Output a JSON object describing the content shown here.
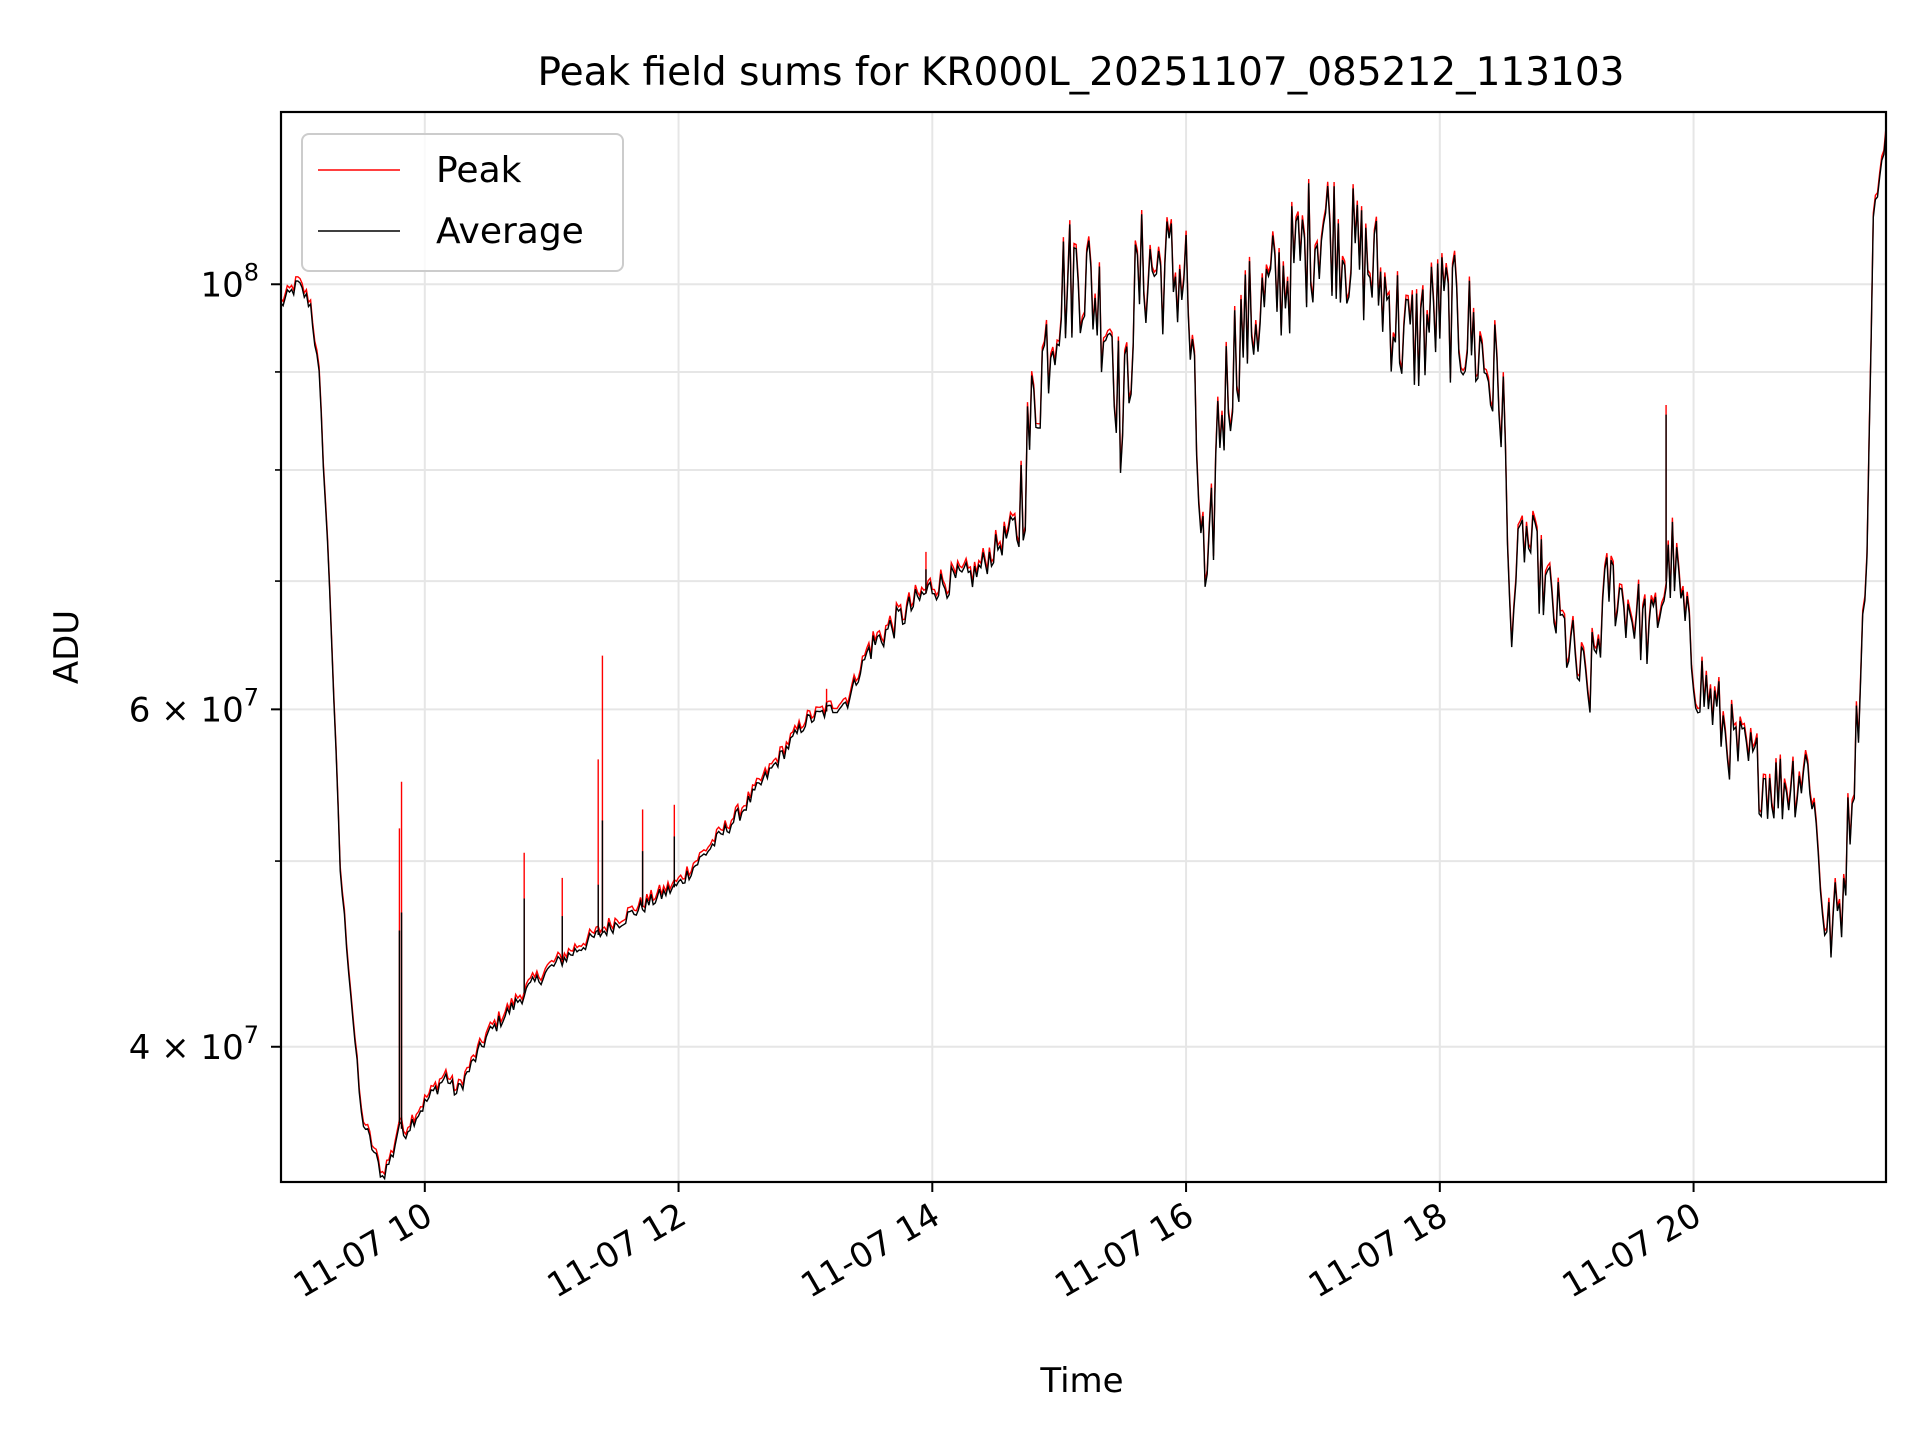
{
  "chart_data": {
    "type": "line",
    "title": "Peak field sums for KR000L_20251107_085212_113103",
    "xlabel": "Time",
    "ylabel": "ADU",
    "yscale": "log",
    "xlim": [
      "2025-11-07 08:52",
      "2025-11-07 21:31"
    ],
    "ylim": [
      34000000,
      123000000
    ],
    "x_tick_labels": [
      "11-07 10",
      "11-07 12",
      "11-07 14",
      "11-07 16",
      "11-07 18",
      "11-07 20"
    ],
    "x_ticks": [
      "2025-11-07 10:00",
      "2025-11-07 12:00",
      "2025-11-07 14:00",
      "2025-11-07 16:00",
      "2025-11-07 18:00",
      "2025-11-07 20:00"
    ],
    "y_tick_labels": [
      {
        "value": 100000000,
        "base": "10",
        "exp": "8"
      },
      {
        "value": 60000000,
        "base": "6 × 10",
        "exp": "7"
      },
      {
        "value": 40000000,
        "base": "4 × 10",
        "exp": "7"
      }
    ],
    "y_minor_ticks": [
      50000000,
      70000000,
      80000000,
      90000000
    ],
    "grid": true,
    "legend_position": "top-left",
    "series": [
      {
        "name": "Peak",
        "color": "#ff0000",
        "x": [
          "2025-11-07 08:52",
          "2025-11-07 09:00",
          "2025-11-07 09:06",
          "2025-11-07 09:10",
          "2025-11-07 09:15",
          "2025-11-07 09:20",
          "2025-11-07 09:30",
          "2025-11-07 09:40",
          "2025-11-07 09:45",
          "2025-11-07 09:48",
          "2025-11-07 09:50",
          "2025-11-07 09:55",
          "2025-11-07 10:05",
          "2025-11-07 10:10",
          "2025-11-07 10:15",
          "2025-11-07 10:30",
          "2025-11-07 10:50",
          "2025-11-07 11:00",
          "2025-11-07 11:20",
          "2025-11-07 11:40",
          "2025-11-07 12:00",
          "2025-11-07 12:30",
          "2025-11-07 13:00",
          "2025-11-07 13:20",
          "2025-11-07 13:30",
          "2025-11-07 14:00",
          "2025-11-07 14:20",
          "2025-11-07 14:40",
          "2025-11-07 14:50",
          "2025-11-07 15:00",
          "2025-11-07 15:10",
          "2025-11-07 15:25",
          "2025-11-07 15:30",
          "2025-11-07 15:35",
          "2025-11-07 15:40",
          "2025-11-07 16:00",
          "2025-11-07 16:10",
          "2025-11-07 16:15",
          "2025-11-07 16:25",
          "2025-11-07 16:35",
          "2025-11-07 16:50",
          "2025-11-07 17:05",
          "2025-11-07 17:15",
          "2025-11-07 17:30",
          "2025-11-07 17:45",
          "2025-11-07 18:00",
          "2025-11-07 18:15",
          "2025-11-07 18:30",
          "2025-11-07 18:33",
          "2025-11-07 18:40",
          "2025-11-07 19:00",
          "2025-11-07 19:10",
          "2025-11-07 19:20",
          "2025-11-07 19:40",
          "2025-11-07 19:50",
          "2025-11-07 20:00",
          "2025-11-07 20:20",
          "2025-11-07 20:40",
          "2025-11-07 20:55",
          "2025-11-07 21:03",
          "2025-11-07 21:10",
          "2025-11-07 21:17",
          "2025-11-07 21:22",
          "2025-11-07 21:25",
          "2025-11-07 21:31"
        ],
        "y": [
          98000000,
          100500000,
          98000000,
          90000000,
          70000000,
          50000000,
          37000000,
          34500000,
          35500000,
          37000000,
          36500000,
          37000000,
          38500000,
          39000000,
          38300000,
          41000000,
          43500000,
          44500000,
          46000000,
          47500000,
          49000000,
          53500000,
          59500000,
          61000000,
          65000000,
          70000000,
          71000000,
          76000000,
          90000000,
          100000000,
          103000000,
          96000000,
          85000000,
          98000000,
          103000000,
          102000000,
          67000000,
          85000000,
          95000000,
          98000000,
          103000000,
          110000000,
          106000000,
          102000000,
          94000000,
          98000000,
          95000000,
          88000000,
          68000000,
          75000000,
          66000000,
          62000000,
          71000000,
          66000000,
          74000000,
          64000000,
          58000000,
          55000000,
          57000000,
          46000000,
          48000000,
          59000000,
          75000000,
          110000000,
          122000000
        ]
      },
      {
        "name": "Average",
        "color": "#000000",
        "x": [
          "2025-11-07 08:52",
          "2025-11-07 09:00",
          "2025-11-07 09:06",
          "2025-11-07 09:10",
          "2025-11-07 09:15",
          "2025-11-07 09:20",
          "2025-11-07 09:30",
          "2025-11-07 09:40",
          "2025-11-07 09:45",
          "2025-11-07 09:48",
          "2025-11-07 09:50",
          "2025-11-07 09:55",
          "2025-11-07 10:05",
          "2025-11-07 10:10",
          "2025-11-07 10:15",
          "2025-11-07 10:30",
          "2025-11-07 10:50",
          "2025-11-07 11:00",
          "2025-11-07 11:20",
          "2025-11-07 11:40",
          "2025-11-07 12:00",
          "2025-11-07 12:30",
          "2025-11-07 13:00",
          "2025-11-07 13:20",
          "2025-11-07 13:30",
          "2025-11-07 14:00",
          "2025-11-07 14:20",
          "2025-11-07 14:40",
          "2025-11-07 14:50",
          "2025-11-07 15:00",
          "2025-11-07 15:10",
          "2025-11-07 15:25",
          "2025-11-07 15:30",
          "2025-11-07 15:35",
          "2025-11-07 15:40",
          "2025-11-07 16:00",
          "2025-11-07 16:10",
          "2025-11-07 16:15",
          "2025-11-07 16:25",
          "2025-11-07 16:35",
          "2025-11-07 16:50",
          "2025-11-07 17:05",
          "2025-11-07 17:15",
          "2025-11-07 17:30",
          "2025-11-07 17:45",
          "2025-11-07 18:00",
          "2025-11-07 18:15",
          "2025-11-07 18:30",
          "2025-11-07 18:33",
          "2025-11-07 18:40",
          "2025-11-07 19:00",
          "2025-11-07 19:10",
          "2025-11-07 19:20",
          "2025-11-07 19:40",
          "2025-11-07 19:50",
          "2025-11-07 20:00",
          "2025-11-07 20:20",
          "2025-11-07 20:40",
          "2025-11-07 20:55",
          "2025-11-07 21:03",
          "2025-11-07 21:10",
          "2025-11-07 21:17",
          "2025-11-07 21:22",
          "2025-11-07 21:25",
          "2025-11-07 21:31"
        ],
        "y": [
          97500000,
          100000000,
          97500000,
          89500000,
          69500000,
          49500000,
          36800000,
          34200000,
          35200000,
          36500000,
          36000000,
          36700000,
          38000000,
          38600000,
          37800000,
          40600000,
          43000000,
          44000000,
          45600000,
          47100000,
          48600000,
          53100000,
          59100000,
          60600000,
          64500000,
          69500000,
          70500000,
          75000000,
          89000000,
          99000000,
          102000000,
          95000000,
          83000000,
          97000000,
          102000000,
          101000000,
          66000000,
          84000000,
          94000000,
          97000000,
          102000000,
          108000000,
          105000000,
          101000000,
          93000000,
          97000000,
          94000000,
          87000000,
          67000000,
          74000000,
          65000000,
          61000000,
          70000000,
          65500000,
          72000000,
          63000000,
          57000000,
          54500000,
          56000000,
          45500000,
          47500000,
          58000000,
          72000000,
          108000000,
          120000000
        ]
      }
    ],
    "spikes": [
      {
        "x": "2025-11-07 09:48",
        "peak": 52000000,
        "average": 46000000
      },
      {
        "x": "2025-11-07 09:49",
        "peak": 55000000,
        "average": 47000000
      },
      {
        "x": "2025-11-07 10:47",
        "peak": 50500000,
        "average": 47800000
      },
      {
        "x": "2025-11-07 11:05",
        "peak": 49000000,
        "average": 46800000
      },
      {
        "x": "2025-11-07 11:22",
        "peak": 56500000,
        "average": 48600000
      },
      {
        "x": "2025-11-07 11:24",
        "peak": 64000000,
        "average": 52500000
      },
      {
        "x": "2025-11-07 11:43",
        "peak": 53200000,
        "average": 50600000
      },
      {
        "x": "2025-11-07 11:58",
        "peak": 53500000,
        "average": 51500000
      },
      {
        "x": "2025-11-07 13:10",
        "peak": 61500000,
        "average": 60500000
      },
      {
        "x": "2025-11-07 13:57",
        "peak": 72500000,
        "average": 71000000
      },
      {
        "x": "2025-11-07 19:47",
        "peak": 86500000,
        "average": 85500000
      }
    ]
  },
  "legend": {
    "items": [
      {
        "label": "Peak",
        "color": "#ff0000"
      },
      {
        "label": "Average",
        "color": "#000000"
      }
    ]
  }
}
